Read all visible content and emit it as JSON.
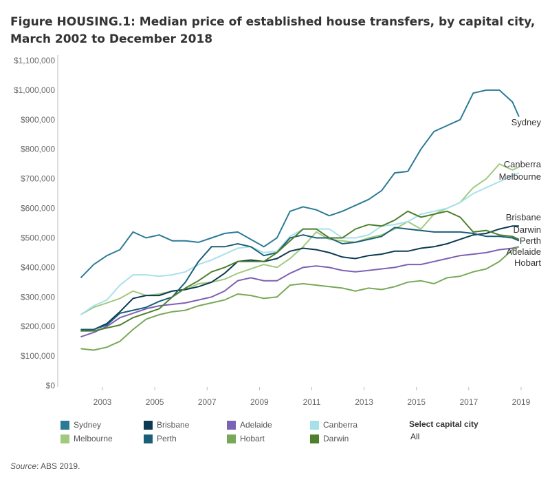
{
  "title": "Figure HOUSING.1: Median price of established house transfers, by capital city, March 2002 to December 2018",
  "chart_data": {
    "type": "line",
    "title": "Figure HOUSING.1: Median price of established house transfers, by capital city, March 2002 to December 2018",
    "xlabel": "",
    "ylabel": "",
    "ylim": [
      0,
      1100000
    ],
    "y_ticks": [
      "$0",
      "$100,000",
      "$200,000",
      "$300,000",
      "$400,000",
      "$500,000",
      "$600,000",
      "$700,000",
      "$800,000",
      "$900,000",
      "$1,000,000",
      "$1,100,000"
    ],
    "x_ticks": [
      "2003",
      "2005",
      "2007",
      "2009",
      "2011",
      "2013",
      "2015",
      "2017",
      "2019"
    ],
    "grid": false,
    "legend": "bottom",
    "x": [
      "Mar 2002",
      "Sep 2002",
      "Mar 2003",
      "Sep 2003",
      "Mar 2004",
      "Sep 2004",
      "Mar 2005",
      "Sep 2005",
      "Mar 2006",
      "Sep 2006",
      "Mar 2007",
      "Sep 2007",
      "Mar 2008",
      "Sep 2008",
      "Mar 2009",
      "Sep 2009",
      "Mar 2010",
      "Sep 2010",
      "Mar 2011",
      "Sep 2011",
      "Mar 2012",
      "Sep 2012",
      "Mar 2013",
      "Sep 2013",
      "Mar 2014",
      "Sep 2014",
      "Mar 2015",
      "Sep 2015",
      "Mar 2016",
      "Sep 2016",
      "Mar 2017",
      "Sep 2017",
      "Mar 2018",
      "Sep 2018",
      "Dec 2018"
    ],
    "series": [
      {
        "name": "Sydney",
        "color": "#2a7b96",
        "values": [
          365000,
          410000,
          440000,
          460000,
          520000,
          500000,
          510000,
          490000,
          490000,
          485000,
          500000,
          515000,
          520000,
          495000,
          470000,
          500000,
          590000,
          605000,
          595000,
          575000,
          590000,
          610000,
          630000,
          660000,
          720000,
          725000,
          800000,
          860000,
          880000,
          900000,
          990000,
          1000000,
          1000000,
          960000,
          910000
        ]
      },
      {
        "name": "Melbourne",
        "color": "#a0c97e",
        "values": [
          240000,
          265000,
          280000,
          295000,
          320000,
          305000,
          310000,
          320000,
          325000,
          345000,
          350000,
          360000,
          380000,
          395000,
          410000,
          400000,
          430000,
          470000,
          520000,
          495000,
          490000,
          485000,
          500000,
          510000,
          530000,
          555000,
          530000,
          580000,
          600000,
          620000,
          670000,
          700000,
          750000,
          730000,
          740000
        ]
      },
      {
        "name": "Canberra",
        "color": "#a8e0ea",
        "values": [
          240000,
          270000,
          290000,
          340000,
          375000,
          375000,
          370000,
          375000,
          385000,
          410000,
          425000,
          445000,
          465000,
          470000,
          450000,
          455000,
          505000,
          530000,
          530000,
          530000,
          500000,
          500000,
          510000,
          540000,
          545000,
          555000,
          580000,
          590000,
          600000,
          620000,
          650000,
          670000,
          690000,
          710000,
          720000
        ]
      },
      {
        "name": "Brisbane",
        "color": "#0b3a52",
        "values": [
          185000,
          190000,
          210000,
          250000,
          295000,
          305000,
          305000,
          320000,
          325000,
          335000,
          350000,
          380000,
          420000,
          425000,
          420000,
          430000,
          455000,
          465000,
          460000,
          450000,
          435000,
          430000,
          440000,
          445000,
          455000,
          455000,
          465000,
          470000,
          480000,
          495000,
          510000,
          515000,
          530000,
          540000,
          540000
        ]
      },
      {
        "name": "Perth",
        "color": "#1a5f78",
        "values": [
          190000,
          190000,
          205000,
          245000,
          255000,
          265000,
          285000,
          300000,
          350000,
          420000,
          470000,
          470000,
          480000,
          470000,
          440000,
          450000,
          500000,
          510000,
          500000,
          500000,
          480000,
          485000,
          495000,
          505000,
          535000,
          530000,
          525000,
          520000,
          520000,
          520000,
          515000,
          505000,
          505000,
          500000,
          490000
        ]
      },
      {
        "name": "Adelaide",
        "color": "#7b62b3",
        "values": [
          165000,
          180000,
          200000,
          230000,
          245000,
          260000,
          270000,
          275000,
          280000,
          290000,
          300000,
          320000,
          355000,
          365000,
          355000,
          355000,
          380000,
          400000,
          405000,
          400000,
          390000,
          385000,
          390000,
          395000,
          400000,
          410000,
          410000,
          420000,
          430000,
          440000,
          445000,
          450000,
          460000,
          465000,
          470000
        ]
      },
      {
        "name": "Hobart",
        "color": "#78a856",
        "values": [
          125000,
          120000,
          130000,
          150000,
          190000,
          225000,
          240000,
          250000,
          255000,
          270000,
          280000,
          290000,
          310000,
          305000,
          295000,
          300000,
          340000,
          345000,
          340000,
          335000,
          330000,
          320000,
          330000,
          325000,
          335000,
          350000,
          355000,
          345000,
          365000,
          370000,
          385000,
          395000,
          420000,
          460000,
          470000
        ]
      },
      {
        "name": "Darwin",
        "color": "#4f7f2d",
        "values": [
          185000,
          185000,
          195000,
          205000,
          230000,
          245000,
          260000,
          300000,
          330000,
          355000,
          385000,
          400000,
          420000,
          420000,
          420000,
          450000,
          490000,
          530000,
          530000,
          500000,
          500000,
          530000,
          545000,
          540000,
          560000,
          590000,
          570000,
          580000,
          590000,
          570000,
          520000,
          525000,
          510000,
          505000,
          495000
        ]
      }
    ]
  },
  "end_labels": [
    "Sydney",
    "Canberra",
    "Melbourne",
    "Brisbane",
    "Darwin",
    "Perth",
    "Adelaide",
    "Hobart"
  ],
  "legend": [
    "Sydney",
    "Brisbane",
    "Adelaide",
    "Canberra",
    "Melbourne",
    "Perth",
    "Hobart",
    "Darwin"
  ],
  "filter": {
    "label": "Select capital city",
    "value": "All"
  },
  "source": {
    "prefix": "Source",
    "text": ": ABS 2019."
  }
}
